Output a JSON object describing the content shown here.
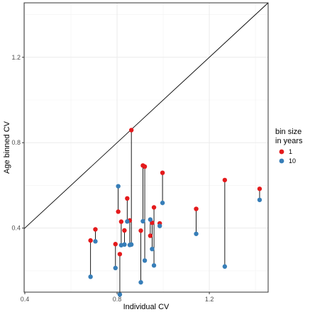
{
  "chart_data": {
    "type": "scatter",
    "title": "",
    "xlabel": "Individual CV",
    "ylabel": "Age binned CV",
    "xlim": [
      0.397,
      1.455
    ],
    "ylim": [
      0.1,
      1.455
    ],
    "x_ticks": [
      0.4,
      0.8,
      1.2
    ],
    "y_ticks": [
      0.4,
      0.8,
      1.2
    ],
    "x_tick_labels": [
      "0.4",
      "0.8",
      "1.2"
    ],
    "y_tick_labels": [
      "0.4",
      "0.8",
      "1.2"
    ],
    "grid": true,
    "identity_line": true,
    "legend": {
      "title_lines": [
        "bin size",
        "in years"
      ],
      "position": "right",
      "entries": [
        {
          "label": "1",
          "color": "#e41a1c"
        },
        {
          "label": "10",
          "color": "#377eb8"
        }
      ]
    },
    "series": [
      {
        "name": "1",
        "color": "#e41a1c",
        "x": [
          0.685,
          0.706,
          0.793,
          0.805,
          0.812,
          0.818,
          0.832,
          0.844,
          0.855,
          0.862,
          0.903,
          0.912,
          0.92,
          0.944,
          0.952,
          0.96,
          0.985,
          0.997,
          1.143,
          1.267,
          1.418
        ],
        "y": [
          0.342,
          0.394,
          0.325,
          0.477,
          0.278,
          0.43,
          0.389,
          0.539,
          0.436,
          0.859,
          0.388,
          0.693,
          0.688,
          0.364,
          0.425,
          0.497,
          0.422,
          0.659,
          0.49,
          0.625,
          0.584
        ]
      },
      {
        "name": "10",
        "color": "#377eb8",
        "x": [
          0.685,
          0.706,
          0.793,
          0.805,
          0.812,
          0.818,
          0.832,
          0.844,
          0.855,
          0.862,
          0.903,
          0.912,
          0.92,
          0.944,
          0.952,
          0.96,
          0.985,
          0.997,
          1.143,
          1.267,
          1.418
        ],
        "y": [
          0.172,
          0.338,
          0.213,
          0.596,
          0.089,
          0.32,
          0.323,
          0.431,
          0.321,
          0.323,
          0.146,
          0.432,
          0.248,
          0.44,
          0.302,
          0.225,
          0.41,
          0.518,
          0.373,
          0.22,
          0.532
        ]
      }
    ]
  }
}
